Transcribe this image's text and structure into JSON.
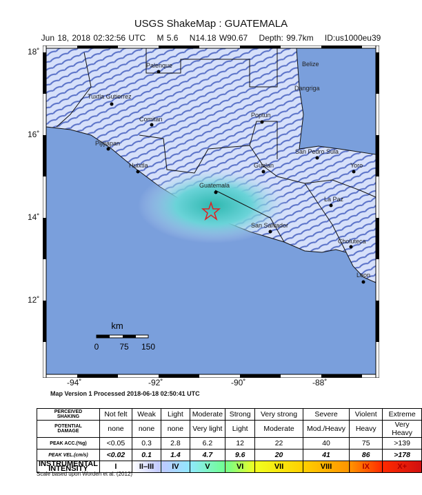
{
  "header": {
    "title": "USGS ShakeMap : GUATEMALA",
    "date": "Jun 18, 2018 02:32:56 UTC",
    "magnitude": "M 5.6",
    "location": "N14.18 W90.67",
    "depth": "Depth: 99.7km",
    "id": "ID:us1000eu39"
  },
  "map": {
    "lon_ticks": [
      "-94˚",
      "-92˚",
      "-90˚",
      "-88˚"
    ],
    "lat_ticks": [
      "18˚",
      "16˚",
      "14˚",
      "12˚"
    ],
    "scalebar": {
      "unit": "km",
      "labels": [
        "0",
        "75",
        "150"
      ]
    },
    "epicenter_icon": "star-icon",
    "cities": [
      "Palenque",
      "Tuxtla Gutierrez",
      "Comitan",
      "Pijijiapan",
      "Huixtla",
      "Belize",
      "Dangriga",
      "Poptun",
      "San Pedro Sula",
      "Yoro",
      "Gualan",
      "Guatemala",
      "La Paz",
      "San Salvador",
      "Choluteca",
      "Leon"
    ],
    "colors": {
      "ocean": "#7a9fdc",
      "land": "#c9d6f5",
      "epicenter": "#e02020"
    }
  },
  "version": "Map Version 1 Processed 2018-06-18 02:50:41 UTC",
  "legend": {
    "rows": [
      {
        "header": [
          "PERCEIVED",
          "SHAKING"
        ],
        "cells": [
          "Not felt",
          "Weak",
          "Light",
          "Moderate",
          "Strong",
          "Very strong",
          "Severe",
          "Violent",
          "Extreme"
        ]
      },
      {
        "header": [
          "POTENTIAL",
          "DAMAGE"
        ],
        "cells": [
          "none",
          "none",
          "none",
          "Very light",
          "Light",
          "Moderate",
          "Mod./Heavy",
          "Heavy",
          "Very Heavy"
        ]
      },
      {
        "header": [
          "PEAK ACC.(%g)"
        ],
        "cells": [
          "<0.05",
          "0.3",
          "2.8",
          "6.2",
          "12",
          "22",
          "40",
          "75",
          ">139"
        ]
      },
      {
        "header": [
          "PEAK VEL.(cm/s)"
        ],
        "cells": [
          "<0.02",
          "0.1",
          "1.4",
          "4.7",
          "9.6",
          "20",
          "41",
          "86",
          ">178"
        ]
      },
      {
        "header": [
          "INSTRUMENTAL",
          "INTENSITY"
        ],
        "cells": [
          "I",
          "II–III",
          "IV",
          "V",
          "VI",
          "VII",
          "VIII",
          "IX",
          "X+"
        ]
      }
    ],
    "intensity_colors": [
      "#ffffff",
      "#c0c8ff",
      "#90e8ff",
      "#70ff90",
      "#f0ff20",
      "#ffd000",
      "#ff9400",
      "#ff2a00",
      "#d01010"
    ],
    "scale_note": "Scale based upon Worden et al. (2012)"
  }
}
